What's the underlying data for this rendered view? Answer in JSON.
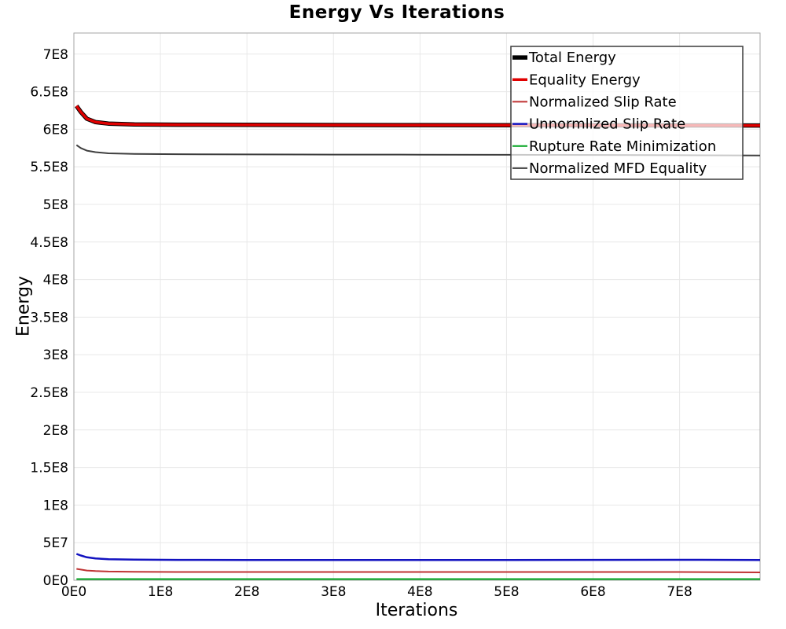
{
  "chart_data": {
    "type": "line",
    "title": "Energy Vs Iterations",
    "xlabel": "Iterations",
    "ylabel": "Energy",
    "xlim": [
      0,
      793000000.0
    ],
    "ylim": [
      0,
      728000000.0
    ],
    "grid": true,
    "legend_position": "top-right",
    "colors": {
      "grid": "#e8e8e8",
      "plot_border": "#a6a6a6",
      "legend_border": "#3c3c3c",
      "legend_background": "rgba(255,255,255,0.72)"
    },
    "x_ticks": [
      {
        "v": 0,
        "label": "0E0"
      },
      {
        "v": 100000000.0,
        "label": "1E8"
      },
      {
        "v": 200000000.0,
        "label": "2E8"
      },
      {
        "v": 300000000.0,
        "label": "3E8"
      },
      {
        "v": 400000000.0,
        "label": "4E8"
      },
      {
        "v": 500000000.0,
        "label": "5E8"
      },
      {
        "v": 600000000.0,
        "label": "6E8"
      },
      {
        "v": 700000000.0,
        "label": "7E8"
      }
    ],
    "y_ticks": [
      {
        "v": 0,
        "label": "0E0"
      },
      {
        "v": 50000000.0,
        "label": "5E7"
      },
      {
        "v": 100000000.0,
        "label": "1E8"
      },
      {
        "v": 150000000.0,
        "label": "1.5E8"
      },
      {
        "v": 200000000.0,
        "label": "2E8"
      },
      {
        "v": 250000000.0,
        "label": "2.5E8"
      },
      {
        "v": 300000000.0,
        "label": "3E8"
      },
      {
        "v": 350000000.0,
        "label": "3.5E8"
      },
      {
        "v": 400000000.0,
        "label": "4E8"
      },
      {
        "v": 450000000.0,
        "label": "4.5E8"
      },
      {
        "v": 500000000.0,
        "label": "5E8"
      },
      {
        "v": 550000000.0,
        "label": "5.5E8"
      },
      {
        "v": 600000000.0,
        "label": "6E8"
      },
      {
        "v": 650000000.0,
        "label": "6.5E8"
      },
      {
        "v": 700000000.0,
        "label": "7E8"
      }
    ],
    "x": [
      3000000.0,
      8000000.0,
      15000000.0,
      25000000.0,
      40000000.0,
      70000000.0,
      120000000.0,
      200000000.0,
      300000000.0,
      400000000.0,
      500000000.0,
      600000000.0,
      700000000.0,
      793000000.0
    ],
    "series": [
      {
        "name": "Total Energy",
        "color": "#000000",
        "width": 5.5,
        "y": [
          631000000.0,
          623000000.0,
          614000000.0,
          609500000.0,
          607500000.0,
          606500000.0,
          606000000.0,
          605800000.0,
          605600000.0,
          605500000.0,
          605400000.0,
          605300000.0,
          605100000.0,
          605000000.0
        ]
      },
      {
        "name": "Equality Energy",
        "color": "#e00000",
        "width": 3.5,
        "y": [
          631000000.0,
          623000000.0,
          614000000.0,
          609500000.0,
          607500000.0,
          606500000.0,
          606000000.0,
          605800000.0,
          605600000.0,
          605500000.0,
          605400000.0,
          605300000.0,
          605100000.0,
          605000000.0
        ]
      },
      {
        "name": "Normalized Slip Rate",
        "color": "#bf3333",
        "width": 2,
        "y": [
          15200000.0,
          14200000.0,
          13000000.0,
          12200000.0,
          11600000.0,
          11200000.0,
          11000000.0,
          11000000.0,
          11000000.0,
          11000000.0,
          11000000.0,
          11000000.0,
          11000000.0,
          10500000.0
        ]
      },
      {
        "name": "Unnormlized Slip Rate",
        "color": "#1212c0",
        "width": 2.5,
        "y": [
          35000000.0,
          33000000.0,
          30500000.0,
          29000000.0,
          28000000.0,
          27400000.0,
          27100000.0,
          27000000.0,
          27000000.0,
          27000000.0,
          27000000.0,
          27100000.0,
          27200000.0,
          27000000.0
        ]
      },
      {
        "name": "Rupture Rate Minimization",
        "color": "#00a41e",
        "width": 2,
        "y": [
          1600000.0,
          1600000.0,
          1600000.0,
          1600000.0,
          1600000.0,
          1600000.0,
          1600000.0,
          1600000.0,
          1600000.0,
          1600000.0,
          1600000.0,
          1600000.0,
          1600000.0,
          1600000.0
        ]
      },
      {
        "name": "Normalized MFD Equality",
        "color": "#3f3f3f",
        "width": 2,
        "y": [
          579000000.0,
          575000000.0,
          571500000.0,
          569500000.0,
          568000000.0,
          567200000.0,
          566800000.0,
          566500000.0,
          566300000.0,
          566200000.0,
          566000000.0,
          565800000.0,
          565500000.0,
          565000000.0
        ]
      }
    ]
  }
}
